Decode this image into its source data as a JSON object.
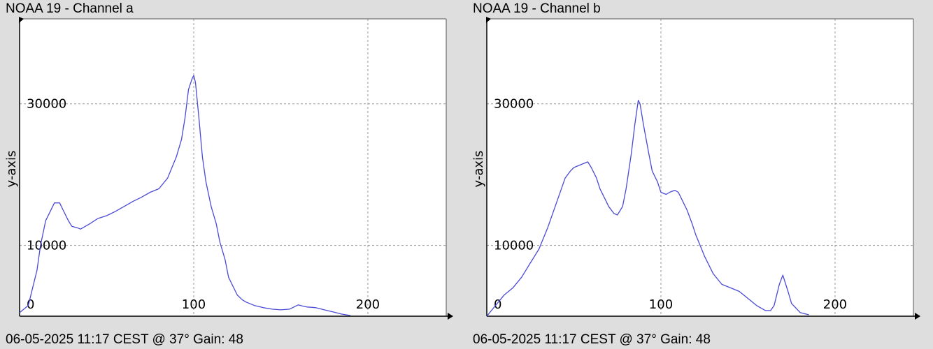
{
  "chart_data": [
    {
      "type": "line",
      "title": "NOAA 19 - Channel a",
      "footer": "06-05-2025 11:17 CEST @ 37° Gain: 48",
      "ylabel": "y-axis",
      "xlim": [
        0,
        245
      ],
      "ylim": [
        0,
        42000
      ],
      "xticks": [
        0,
        100,
        200
      ],
      "xtick_labels": [
        "0",
        "100",
        "200"
      ],
      "yticks": [
        10000,
        30000
      ],
      "ytick_labels": [
        "10000",
        "30000"
      ],
      "grid": true,
      "line_color": "#4a4ad6",
      "series": [
        {
          "x": [
            0,
            5,
            10,
            12,
            15,
            18,
            20,
            23,
            25,
            28,
            30,
            33,
            35,
            40,
            45,
            50,
            55,
            60,
            65,
            70,
            75,
            80,
            85,
            90,
            93,
            95,
            97,
            99,
            100,
            101,
            103,
            105,
            107,
            110,
            113,
            115,
            118,
            120,
            123,
            125,
            128,
            130,
            135,
            140,
            145,
            150,
            155,
            160,
            163,
            165,
            168,
            170,
            175,
            180,
            185,
            190
          ],
          "y": [
            500,
            1500,
            6500,
            10000,
            13500,
            15000,
            16000,
            16000,
            15000,
            13500,
            12700,
            12500,
            12300,
            13000,
            13800,
            14200,
            14800,
            15500,
            16200,
            16800,
            17500,
            18000,
            19500,
            22500,
            25000,
            28000,
            32000,
            33500,
            34000,
            33000,
            28000,
            22500,
            19000,
            15500,
            13000,
            10500,
            8000,
            5500,
            4000,
            3000,
            2300,
            2000,
            1500,
            1200,
            1000,
            900,
            1000,
            1600,
            1400,
            1300,
            1250,
            1200,
            900,
            600,
            300,
            100
          ]
        }
      ]
    },
    {
      "type": "line",
      "title": "NOAA 19 - Channel b",
      "footer": "06-05-2025 11:17 CEST @ 37° Gain: 48",
      "ylabel": "y-axis",
      "xlim": [
        0,
        245
      ],
      "ylim": [
        0,
        42000
      ],
      "xticks": [
        0,
        100,
        200
      ],
      "xtick_labels": [
        "0",
        "100",
        "200"
      ],
      "yticks": [
        10000,
        30000
      ],
      "ytick_labels": [
        "10000",
        "30000"
      ],
      "grid": true,
      "line_color": "#4a4ad6",
      "series": [
        {
          "x": [
            0,
            5,
            10,
            15,
            20,
            25,
            30,
            35,
            40,
            45,
            48,
            50,
            55,
            58,
            60,
            63,
            65,
            68,
            70,
            73,
            75,
            78,
            80,
            83,
            85,
            87,
            88,
            90,
            93,
            95,
            98,
            100,
            103,
            105,
            108,
            110,
            113,
            115,
            118,
            120,
            125,
            130,
            135,
            140,
            145,
            150,
            155,
            160,
            163,
            165,
            168,
            170,
            173,
            175,
            180,
            185
          ],
          "y": [
            0,
            1500,
            3000,
            4000,
            5500,
            7500,
            9500,
            12500,
            16000,
            19500,
            20500,
            21000,
            21500,
            21800,
            21000,
            19500,
            18000,
            16500,
            15500,
            14500,
            14300,
            15500,
            18000,
            23000,
            27000,
            30500,
            30000,
            27000,
            23000,
            20500,
            19000,
            17500,
            17200,
            17500,
            17800,
            17500,
            16000,
            15000,
            13000,
            11500,
            8500,
            6000,
            4500,
            4000,
            3500,
            2500,
            1500,
            800,
            800,
            1500,
            4500,
            5800,
            3500,
            1800,
            500,
            200
          ]
        }
      ]
    }
  ]
}
